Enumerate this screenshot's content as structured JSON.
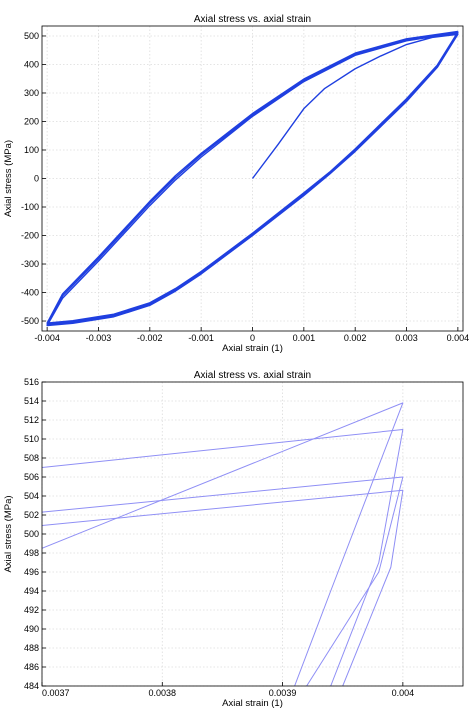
{
  "chart_data": [
    {
      "type": "line",
      "title": "Axial stress vs. axial strain",
      "xlabel": "Axial strain (1)",
      "ylabel": "Axial stress (MPa)",
      "xlim": [
        -0.0041,
        0.0041
      ],
      "ylim": [
        -535,
        535
      ],
      "grid": true,
      "line_color": "#1f3fe0",
      "xticks": [
        -0.004,
        -0.003,
        -0.002,
        -0.001,
        0,
        0.001,
        0.002,
        0.003,
        0.004
      ],
      "xtick_labels": [
        "-0.004",
        "-0.003",
        "-0.002",
        "-0.001",
        "0",
        "0.001",
        "0.002",
        "0.003",
        "0.004"
      ],
      "yticks": [
        -500,
        -400,
        -300,
        -200,
        -100,
        0,
        100,
        200,
        300,
        400,
        500
      ],
      "ytick_labels": [
        "-500",
        "-400",
        "-300",
        "-200",
        "-100",
        "0",
        "100",
        "200",
        "300",
        "400",
        "500"
      ],
      "series": [
        {
          "values": [
            [
              0.0,
              0.0
            ],
            [
              0.0005,
              120
            ],
            [
              0.001,
              245
            ],
            [
              0.0014,
              315
            ],
            [
              0.002,
              385
            ],
            [
              0.0025,
              430
            ],
            [
              0.003,
              470
            ],
            [
              0.0035,
              495
            ],
            [
              0.004,
              506
            ],
            [
              0.0036,
              390
            ],
            [
              0.003,
              270
            ],
            [
              0.002,
              95
            ],
            [
              0.0015,
              15
            ],
            [
              0.001,
              -60
            ],
            [
              0.0,
              -200
            ],
            [
              -0.001,
              -335
            ],
            [
              -0.0015,
              -395
            ],
            [
              -0.002,
              -445
            ],
            [
              -0.0027,
              -485
            ],
            [
              -0.0035,
              -508
            ],
            [
              -0.004,
              -516
            ],
            [
              -0.0037,
              -420
            ],
            [
              -0.003,
              -290
            ],
            [
              -0.002,
              -95
            ],
            [
              -0.0015,
              -5
            ],
            [
              -0.001,
              75
            ],
            [
              0.0,
              218
            ],
            [
              0.001,
              340
            ],
            [
              0.002,
              432
            ],
            [
              0.003,
              483
            ],
            [
              0.004,
              511
            ],
            [
              0.0036,
              395
            ],
            [
              0.003,
              276
            ],
            [
              0.002,
              100
            ],
            [
              0.0015,
              18
            ],
            [
              0.001,
              -55
            ],
            [
              0.0,
              -196
            ],
            [
              -0.001,
              -330
            ],
            [
              -0.0015,
              -390
            ],
            [
              -0.002,
              -440
            ],
            [
              -0.0027,
              -480
            ],
            [
              -0.0035,
              -503
            ],
            [
              -0.004,
              -511
            ],
            [
              -0.0037,
              -412
            ],
            [
              -0.003,
              -282
            ],
            [
              -0.002,
              -87
            ],
            [
              -0.0015,
              3
            ],
            [
              -0.001,
              82
            ],
            [
              0.0,
              223
            ],
            [
              0.001,
              345
            ],
            [
              0.002,
              436
            ],
            [
              0.003,
              487
            ],
            [
              0.004,
              514
            ],
            [
              0.0036,
              398
            ],
            [
              0.003,
              280
            ],
            [
              0.002,
              104
            ],
            [
              0.0015,
              22
            ],
            [
              0.001,
              -50
            ],
            [
              0.0,
              -192
            ],
            [
              -0.001,
              -326
            ],
            [
              -0.0015,
              -386
            ],
            [
              -0.002,
              -436
            ],
            [
              -0.0027,
              -476
            ],
            [
              -0.0035,
              -499
            ],
            [
              -0.004,
              -507
            ],
            [
              -0.0037,
              -405
            ],
            [
              -0.003,
              -275
            ],
            [
              -0.002,
              -80
            ],
            [
              -0.0015,
              10
            ],
            [
              -0.001,
              88
            ],
            [
              0.0,
              228
            ],
            [
              0.001,
              349
            ],
            [
              0.002,
              440
            ],
            [
              0.003,
              490
            ],
            [
              0.004,
              516
            ]
          ]
        }
      ]
    },
    {
      "type": "line",
      "title": "Axial stress vs. axial strain",
      "xlabel": "Axial strain (1)",
      "ylabel": "Axial stress (MPa)",
      "xlim": [
        0.0037,
        0.00405
      ],
      "ylim": [
        484,
        516
      ],
      "grid": true,
      "line_color": "#8f8ff5",
      "xticks": [
        0.0037,
        0.0038,
        0.0039,
        0.004
      ],
      "xtick_labels": [
        "0.0037",
        "0.0038",
        "0.0039",
        "0.004"
      ],
      "yticks": [
        484,
        486,
        488,
        490,
        492,
        494,
        496,
        498,
        500,
        502,
        504,
        506,
        508,
        510,
        512,
        514,
        516
      ],
      "ytick_labels": [
        "484",
        "486",
        "488",
        "490",
        "492",
        "494",
        "496",
        "498",
        "500",
        "502",
        "504",
        "506",
        "508",
        "510",
        "512",
        "514",
        "516"
      ],
      "series": [
        {
          "values": [
            [
              0.0037,
              507.0
            ],
            [
              0.004,
              511.0
            ],
            [
              0.00398,
              497.0
            ],
            [
              0.00394,
              484.0
            ]
          ]
        },
        {
          "values": [
            [
              0.0037,
              502.3
            ],
            [
              0.004,
              506.0
            ],
            [
              0.00398,
              496.0
            ],
            [
              0.00392,
              484.0
            ]
          ]
        },
        {
          "values": [
            [
              0.0037,
              500.9
            ],
            [
              0.004,
              504.6
            ],
            [
              0.00399,
              496.5
            ],
            [
              0.00395,
              484.0
            ]
          ]
        },
        {
          "values": [
            [
              0.0037,
              498.5
            ],
            [
              0.004,
              513.8
            ],
            [
              0.00394,
              494.0
            ],
            [
              0.00391,
              484.0
            ]
          ]
        }
      ]
    }
  ]
}
